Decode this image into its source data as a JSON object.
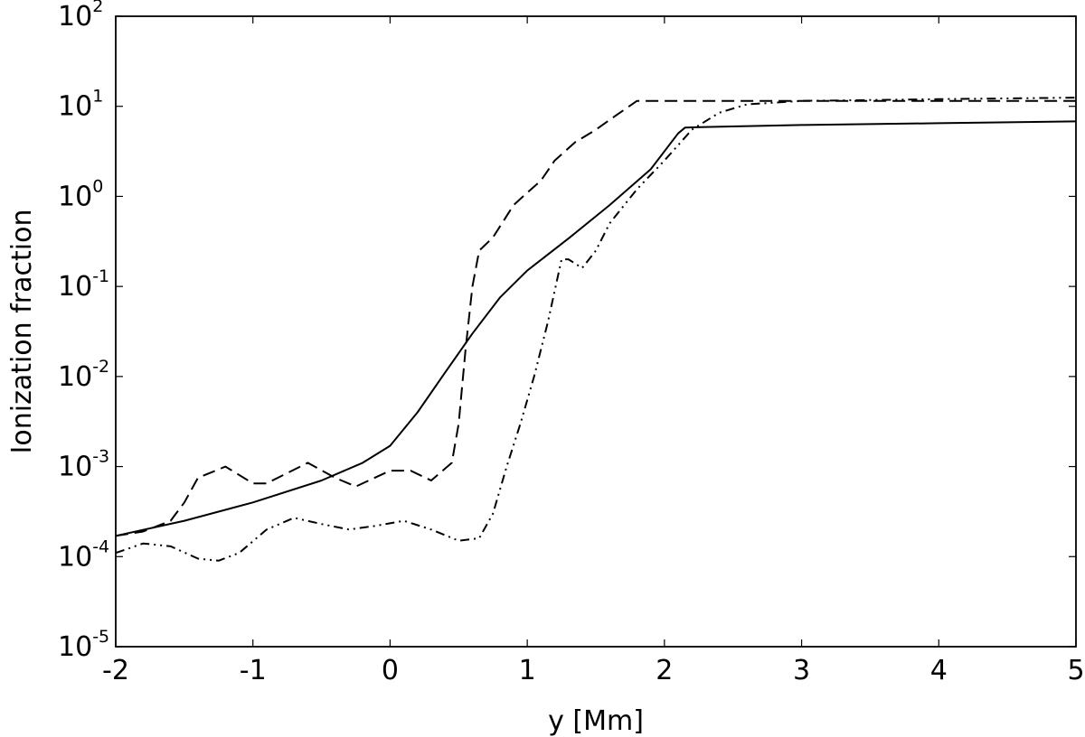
{
  "chart_data": {
    "type": "line",
    "xlabel": "y [Mm]",
    "ylabel": "Ionization fraction",
    "xlim": [
      -2,
      5
    ],
    "ylim": [
      1e-05,
      100
    ],
    "yscale": "log",
    "grid": false,
    "x_ticks": [
      {
        "value": -2,
        "label": "-2"
      },
      {
        "value": -1,
        "label": "-1"
      },
      {
        "value": 0,
        "label": "0"
      },
      {
        "value": 1,
        "label": "1"
      },
      {
        "value": 2,
        "label": "2"
      },
      {
        "value": 3,
        "label": "3"
      },
      {
        "value": 4,
        "label": "4"
      },
      {
        "value": 5,
        "label": "5"
      }
    ],
    "y_ticks": [
      {
        "value": 1e-05,
        "base": "10",
        "exp": "-5"
      },
      {
        "value": 0.0001,
        "base": "10",
        "exp": "-4"
      },
      {
        "value": 0.001,
        "base": "10",
        "exp": "-3"
      },
      {
        "value": 0.01,
        "base": "10",
        "exp": "-2"
      },
      {
        "value": 0.1,
        "base": "10",
        "exp": "-1"
      },
      {
        "value": 1,
        "base": "10",
        "exp": "0"
      },
      {
        "value": 10,
        "base": "10",
        "exp": "1"
      },
      {
        "value": 100,
        "base": "10",
        "exp": "2"
      }
    ],
    "series": [
      {
        "style": "solid",
        "points": [
          [
            -2.0,
            0.00017
          ],
          [
            -1.5,
            0.00025
          ],
          [
            -1.0,
            0.0004
          ],
          [
            -0.5,
            0.0007
          ],
          [
            -0.2,
            0.0011
          ],
          [
            0.0,
            0.0017
          ],
          [
            0.2,
            0.004
          ],
          [
            0.4,
            0.011
          ],
          [
            0.6,
            0.03
          ],
          [
            0.8,
            0.075
          ],
          [
            1.0,
            0.15
          ],
          [
            1.3,
            0.34
          ],
          [
            1.6,
            0.8
          ],
          [
            1.9,
            2.0
          ],
          [
            2.1,
            5.0
          ],
          [
            2.15,
            5.8
          ],
          [
            2.3,
            5.9
          ],
          [
            3.0,
            6.2
          ],
          [
            4.0,
            6.5
          ],
          [
            5.0,
            6.8
          ]
        ]
      },
      {
        "style": "dashed",
        "points": [
          [
            -2.0,
            0.00017
          ],
          [
            -1.8,
            0.00019
          ],
          [
            -1.6,
            0.00025
          ],
          [
            -1.5,
            0.0004
          ],
          [
            -1.4,
            0.00075
          ],
          [
            -1.2,
            0.001
          ],
          [
            -1.0,
            0.00065
          ],
          [
            -0.9,
            0.00065
          ],
          [
            -0.6,
            0.0011
          ],
          [
            -0.4,
            0.00075
          ],
          [
            -0.25,
            0.0006
          ],
          [
            0.0,
            0.0009
          ],
          [
            0.15,
            0.0009
          ],
          [
            0.3,
            0.0007
          ],
          [
            0.45,
            0.0011
          ],
          [
            0.5,
            0.003
          ],
          [
            0.55,
            0.02
          ],
          [
            0.6,
            0.1
          ],
          [
            0.65,
            0.25
          ],
          [
            0.75,
            0.35
          ],
          [
            0.9,
            0.8
          ],
          [
            1.0,
            1.1
          ],
          [
            1.1,
            1.5
          ],
          [
            1.2,
            2.5
          ],
          [
            1.35,
            4.0
          ],
          [
            1.5,
            5.5
          ],
          [
            1.65,
            8.0
          ],
          [
            1.8,
            11.5
          ],
          [
            2.0,
            11.5
          ],
          [
            3.0,
            11.5
          ],
          [
            4.0,
            11.5
          ],
          [
            5.0,
            11.5
          ]
        ]
      },
      {
        "style": "dash-dot-dot",
        "points": [
          [
            -2.0,
            0.00011
          ],
          [
            -1.8,
            0.00014
          ],
          [
            -1.6,
            0.00013
          ],
          [
            -1.4,
            9.5e-05
          ],
          [
            -1.25,
            9e-05
          ],
          [
            -1.1,
            0.00011
          ],
          [
            -0.9,
            0.0002
          ],
          [
            -0.7,
            0.00027
          ],
          [
            -0.5,
            0.00023
          ],
          [
            -0.3,
            0.0002
          ],
          [
            -0.1,
            0.00022
          ],
          [
            0.1,
            0.00025
          ],
          [
            0.3,
            0.0002
          ],
          [
            0.5,
            0.00015
          ],
          [
            0.65,
            0.00016
          ],
          [
            0.75,
            0.0003
          ],
          [
            0.85,
            0.001
          ],
          [
            0.95,
            0.003
          ],
          [
            1.05,
            0.01
          ],
          [
            1.15,
            0.04
          ],
          [
            1.25,
            0.2
          ],
          [
            1.3,
            0.2
          ],
          [
            1.4,
            0.16
          ],
          [
            1.5,
            0.25
          ],
          [
            1.6,
            0.5
          ],
          [
            1.8,
            1.2
          ],
          [
            2.0,
            2.5
          ],
          [
            2.2,
            5.5
          ],
          [
            2.4,
            8.5
          ],
          [
            2.6,
            10.5
          ],
          [
            3.0,
            11.5
          ],
          [
            4.0,
            12.0
          ],
          [
            5.0,
            12.5
          ]
        ]
      }
    ]
  }
}
